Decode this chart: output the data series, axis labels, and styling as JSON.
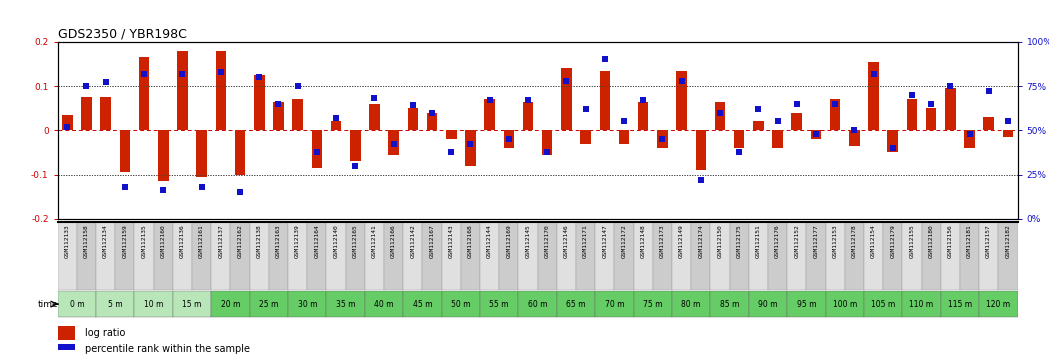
{
  "title": "GDS2350 / YBR198C",
  "samples": [
    "GSM112133",
    "GSM112158",
    "GSM112134",
    "GSM112159",
    "GSM112135",
    "GSM112160",
    "GSM112136",
    "GSM112161",
    "GSM112137",
    "GSM112162",
    "GSM112138",
    "GSM112163",
    "GSM112139",
    "GSM112164",
    "GSM112140",
    "GSM112165",
    "GSM112141",
    "GSM112166",
    "GSM112142",
    "GSM112167",
    "GSM112143",
    "GSM112168",
    "GSM112144",
    "GSM112169",
    "GSM112145",
    "GSM112170",
    "GSM112146",
    "GSM112171",
    "GSM112147",
    "GSM112172",
    "GSM112148",
    "GSM112173",
    "GSM112149",
    "GSM112174",
    "GSM112150",
    "GSM112175",
    "GSM112151",
    "GSM112176",
    "GSM112152",
    "GSM112177",
    "GSM112153",
    "GSM112178",
    "GSM112154",
    "GSM112179",
    "GSM112155",
    "GSM112180",
    "GSM112156",
    "GSM112181",
    "GSM112157",
    "GSM112182"
  ],
  "log_ratio": [
    0.035,
    0.075,
    0.075,
    -0.095,
    0.165,
    -0.115,
    0.18,
    -0.105,
    0.18,
    -0.1,
    0.125,
    0.065,
    0.07,
    -0.085,
    0.02,
    -0.07,
    0.06,
    -0.055,
    0.05,
    0.04,
    -0.02,
    -0.08,
    0.07,
    -0.04,
    0.065,
    -0.055,
    0.14,
    -0.03,
    0.135,
    -0.03,
    0.065,
    -0.04,
    0.135,
    -0.09,
    0.065,
    -0.04,
    0.02,
    -0.04,
    0.04,
    -0.02,
    0.07,
    -0.035,
    0.155,
    -0.05,
    0.07,
    0.05,
    0.095,
    -0.04,
    0.03,
    -0.015
  ],
  "percentile": [
    52,
    75,
    77,
    18,
    82,
    16,
    82,
    18,
    83,
    15,
    80,
    65,
    75,
    38,
    57,
    30,
    68,
    42,
    64,
    60,
    38,
    42,
    67,
    45,
    67,
    38,
    78,
    62,
    90,
    55,
    67,
    45,
    78,
    22,
    60,
    38,
    62,
    55,
    65,
    48,
    65,
    50,
    82,
    40,
    70,
    65,
    75,
    48,
    72,
    55
  ],
  "time_labels": [
    "0 m",
    "5 m",
    "10 m",
    "15 m",
    "20 m",
    "25 m",
    "30 m",
    "35 m",
    "40 m",
    "45 m",
    "50 m",
    "55 m",
    "60 m",
    "65 m",
    "70 m",
    "75 m",
    "80 m",
    "85 m",
    "90 m",
    "95 m",
    "100 m",
    "105 m",
    "110 m",
    "115 m",
    "120 m"
  ],
  "bar_color": "#cc2200",
  "scatter_color": "#1111cc",
  "ylim": [
    -0.2,
    0.2
  ],
  "y2lim": [
    0,
    100
  ],
  "hline_zero_color": "#cc0000",
  "hline_dotted_color": "#444444",
  "title_fontsize": 9,
  "tick_fontsize": 6.5,
  "legend_fontsize": 7,
  "bar_width": 0.55,
  "time_green_light": "#aaddaa",
  "time_green_dark": "#66cc66"
}
